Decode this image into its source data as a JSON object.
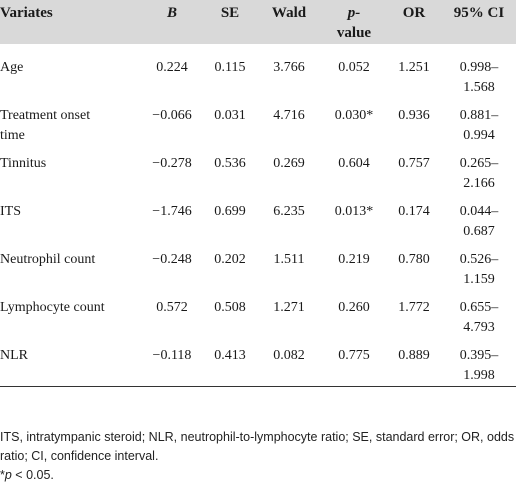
{
  "table": {
    "headers": {
      "variates": "Variates",
      "b": "B",
      "se": "SE",
      "wald": "Wald",
      "p_value_line1": "p-",
      "p_value_line2": "value",
      "or": "OR",
      "ci": "95% CI"
    },
    "rows": [
      {
        "variate": "Age",
        "b": "0.224",
        "se": "0.115",
        "wald": "3.766",
        "p": "0.052",
        "or": "1.251",
        "ci_low": "0.998–",
        "ci_high": "1.568"
      },
      {
        "variate_line1": "Treatment onset",
        "variate_line2": "time",
        "b": "−0.066",
        "se": "0.031",
        "wald": "4.716",
        "p": "0.030*",
        "or": "0.936",
        "ci_low": "0.881–",
        "ci_high": "0.994"
      },
      {
        "variate": "Tinnitus",
        "b": "−0.278",
        "se": "0.536",
        "wald": "0.269",
        "p": "0.604",
        "or": "0.757",
        "ci_low": "0.265–",
        "ci_high": "2.166"
      },
      {
        "variate": "ITS",
        "b": "−1.746",
        "se": "0.699",
        "wald": "6.235",
        "p": "0.013*",
        "or": "0.174",
        "ci_low": "0.044–",
        "ci_high": "0.687"
      },
      {
        "variate": "Neutrophil count",
        "b": "−0.248",
        "se": "0.202",
        "wald": "1.511",
        "p": "0.219",
        "or": "0.780",
        "ci_low": "0.526–",
        "ci_high": "1.159"
      },
      {
        "variate": "Lymphocyte count",
        "b": "0.572",
        "se": "0.508",
        "wald": "1.271",
        "p": "0.260",
        "or": "1.772",
        "ci_low": "0.655–",
        "ci_high": "4.793"
      },
      {
        "variate": "NLR",
        "b": "−0.118",
        "se": "0.413",
        "wald": "0.082",
        "p": "0.775",
        "or": "0.889",
        "ci_low": "0.395–",
        "ci_high": "1.998"
      }
    ]
  },
  "footnote": {
    "abbreviations": "ITS, intratympanic steroid; NLR, neutrophil-to-lymphocyte ratio; SE, standard error; OR, odds ratio; CI, confidence interval.",
    "sig_symbol": "*",
    "sig_p": "p",
    "sig_rest": " < 0.05."
  }
}
